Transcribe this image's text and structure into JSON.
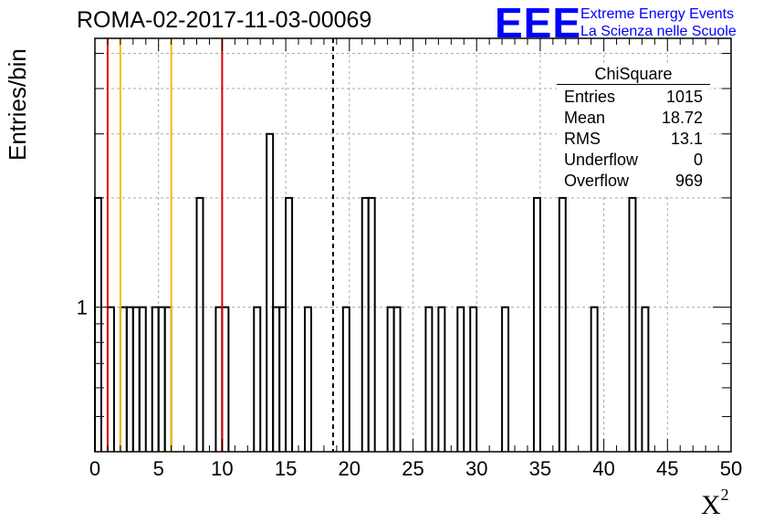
{
  "title": "ROMA-02-2017-11-03-00069",
  "logo": {
    "mark": "EEE",
    "line1": "Extreme Energy Events",
    "line2": "La Scienza nelle Scuole"
  },
  "stats": {
    "title": "ChiSquare",
    "rows": [
      {
        "label": "Entries",
        "value": "1015"
      },
      {
        "label": "Mean",
        "value": "18.72"
      },
      {
        "label": "RMS",
        "value": "13.1"
      },
      {
        "label": "Underflow",
        "value": "0"
      },
      {
        "label": "Overflow",
        "value": "969"
      }
    ]
  },
  "chart_data": {
    "type": "histogram",
    "ylabel": "Entries/bin",
    "xlabel": "Χ",
    "xlabel_sup": "2",
    "xlim": [
      0,
      50
    ],
    "ylog": true,
    "ylim": [
      0.4,
      5.5
    ],
    "grid": true,
    "bin_width": 0.5,
    "x_ticks": [
      0,
      5,
      10,
      15,
      20,
      25,
      30,
      35,
      40,
      45,
      50
    ],
    "y_tick_labels": [
      {
        "value": 1,
        "label": "1"
      }
    ],
    "bins": [
      {
        "x0": 0.0,
        "count": 2
      },
      {
        "x0": 1.0,
        "count": 1
      },
      {
        "x0": 2.0,
        "count": 1
      },
      {
        "x0": 2.5,
        "count": 1
      },
      {
        "x0": 3.0,
        "count": 1
      },
      {
        "x0": 3.5,
        "count": 1
      },
      {
        "x0": 4.5,
        "count": 1
      },
      {
        "x0": 5.0,
        "count": 1
      },
      {
        "x0": 5.5,
        "count": 1
      },
      {
        "x0": 8.0,
        "count": 2
      },
      {
        "x0": 9.5,
        "count": 1
      },
      {
        "x0": 10.0,
        "count": 1
      },
      {
        "x0": 12.5,
        "count": 1
      },
      {
        "x0": 13.5,
        "count": 3
      },
      {
        "x0": 14.0,
        "count": 1
      },
      {
        "x0": 14.5,
        "count": 1
      },
      {
        "x0": 15.0,
        "count": 2
      },
      {
        "x0": 16.5,
        "count": 1
      },
      {
        "x0": 19.5,
        "count": 1
      },
      {
        "x0": 21.0,
        "count": 2
      },
      {
        "x0": 21.5,
        "count": 2
      },
      {
        "x0": 23.0,
        "count": 1
      },
      {
        "x0": 23.5,
        "count": 1
      },
      {
        "x0": 26.0,
        "count": 1
      },
      {
        "x0": 27.0,
        "count": 1
      },
      {
        "x0": 28.5,
        "count": 1
      },
      {
        "x0": 29.5,
        "count": 1
      },
      {
        "x0": 32.0,
        "count": 1
      },
      {
        "x0": 34.5,
        "count": 2
      },
      {
        "x0": 36.5,
        "count": 2
      },
      {
        "x0": 39.0,
        "count": 1
      },
      {
        "x0": 42.0,
        "count": 2
      },
      {
        "x0": 43.0,
        "count": 1
      }
    ],
    "markers": [
      {
        "x": 1.0,
        "color": "#e00000",
        "style": "solid"
      },
      {
        "x": 2.0,
        "color": "#f0c000",
        "style": "solid"
      },
      {
        "x": 6.0,
        "color": "#f0c000",
        "style": "solid"
      },
      {
        "x": 10.0,
        "color": "#e00000",
        "style": "solid"
      },
      {
        "x": 18.72,
        "color": "#000000",
        "style": "dashed"
      }
    ]
  }
}
